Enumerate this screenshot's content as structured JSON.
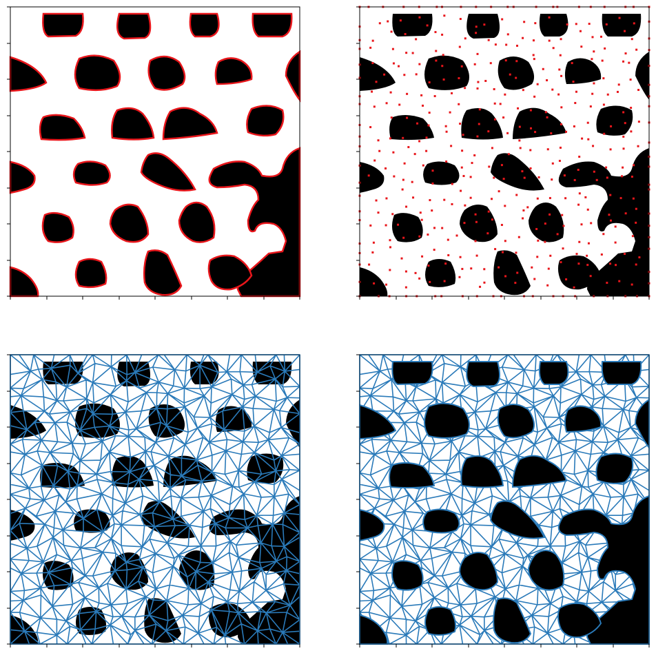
{
  "figure": {
    "panels": [
      {
        "id": "contours",
        "style": "black blobs on white with red contour outlines"
      },
      {
        "id": "points",
        "style": "pixelated black blobs with red sample points"
      },
      {
        "id": "full-triangulation",
        "style": "blue triangulation over whole domain"
      },
      {
        "id": "clipped-triangulation",
        "style": "blue triangulation of white region only"
      }
    ],
    "ticks_per_axis": 9,
    "colors": {
      "blob": "#000000",
      "background": "#ffffff",
      "contour": "#e8161b",
      "points": "#e8161b",
      "mesh": "#2a7ab9",
      "axes": "#000000"
    },
    "axis_labels_visible": false
  }
}
